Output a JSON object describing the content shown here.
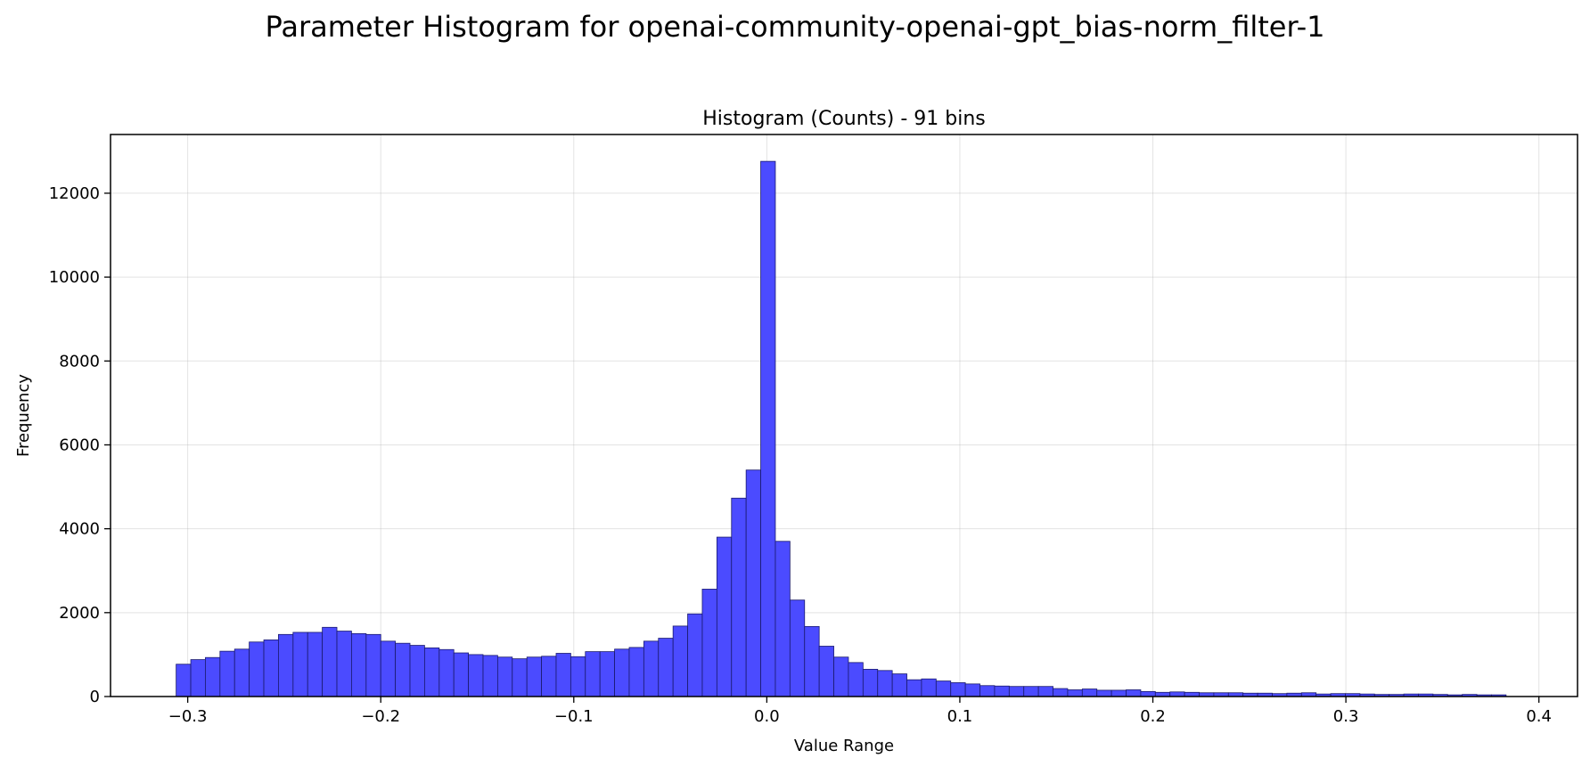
{
  "suptitle": "Parameter Histogram for openai-community-openai-gpt_bias-norm_filter-1",
  "chart_data": {
    "type": "bar",
    "title": "Histogram (Counts) - 91 bins",
    "xlabel": "Value Range",
    "ylabel": "Frequency",
    "xlim": [
      -0.34,
      0.42
    ],
    "ylim": [
      0,
      13400
    ],
    "grid": true,
    "bar_color": "#4b4bff",
    "edge_color": "#1a1a6e",
    "bin_start": -0.306,
    "bin_end": 0.383,
    "xticks": [
      -0.3,
      -0.2,
      -0.1,
      0.0,
      0.1,
      0.2,
      0.3,
      0.4
    ],
    "xtick_labels": [
      "−0.3",
      "−0.2",
      "−0.1",
      "0.0",
      "0.1",
      "0.2",
      "0.3",
      "0.4"
    ],
    "yticks": [
      0,
      2000,
      4000,
      6000,
      8000,
      10000,
      12000
    ],
    "ytick_labels": [
      "0",
      "2000",
      "4000",
      "6000",
      "8000",
      "10000",
      "12000"
    ],
    "counts": [
      770,
      880,
      930,
      1080,
      1130,
      1300,
      1350,
      1480,
      1530,
      1530,
      1650,
      1560,
      1500,
      1480,
      1320,
      1270,
      1220,
      1160,
      1120,
      1040,
      1000,
      980,
      940,
      900,
      940,
      960,
      1030,
      950,
      1070,
      1070,
      1130,
      1170,
      1320,
      1390,
      1680,
      1970,
      2560,
      3800,
      4730,
      5400,
      12760,
      3700,
      2300,
      1670,
      1200,
      940,
      810,
      650,
      620,
      540,
      400,
      420,
      370,
      330,
      300,
      260,
      250,
      240,
      240,
      240,
      190,
      160,
      180,
      150,
      150,
      160,
      120,
      100,
      110,
      100,
      90,
      90,
      90,
      80,
      80,
      70,
      80,
      90,
      60,
      70,
      70,
      60,
      50,
      50,
      60,
      60,
      50,
      40,
      50,
      40,
      40
    ]
  }
}
